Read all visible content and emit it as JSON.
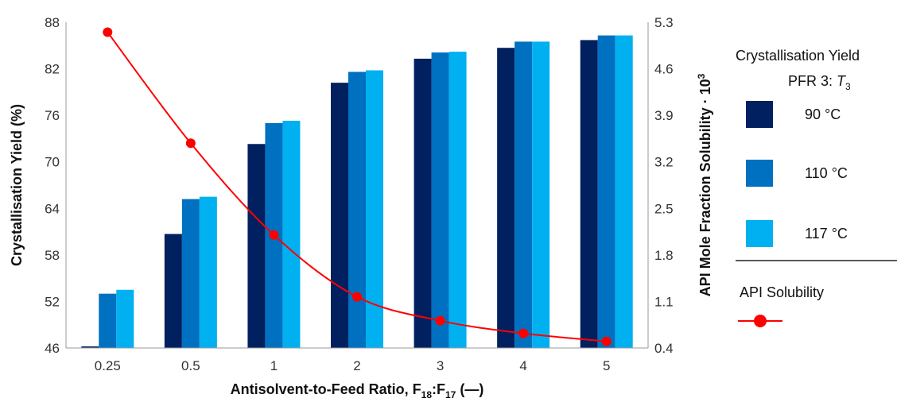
{
  "chart_data": {
    "type": "bar",
    "categories": [
      "0.25",
      "0.5",
      "1",
      "2",
      "3",
      "4",
      "5"
    ],
    "series": [
      {
        "name": "90 °C",
        "color": "#002060",
        "values": [
          46.2,
          60.7,
          72.3,
          80.2,
          83.3,
          84.7,
          85.7
        ]
      },
      {
        "name": "110 °C",
        "color": "#0070C0",
        "values": [
          53.0,
          65.2,
          75.0,
          81.6,
          84.1,
          85.5,
          86.3
        ]
      },
      {
        "name": "117 °C",
        "color": "#00B0F0",
        "values": [
          53.5,
          65.5,
          75.3,
          81.8,
          84.2,
          85.5,
          86.3
        ]
      }
    ],
    "line_series": {
      "name": "API Solubility",
      "color": "#FF0000",
      "axis": "secondary",
      "values": [
        5.15,
        3.48,
        2.1,
        1.17,
        0.81,
        0.62,
        0.5
      ]
    },
    "xlabel_main": "Antisolvent-to-Feed Ratio, F",
    "xlabel_sub1": "18",
    "xlabel_mid": ":F",
    "xlabel_sub2": "17",
    "xlabel_end": " (—)",
    "ylabel": "Crystallisation Yield (%)",
    "y2label_main": "API Mole Fraction Solubility · 10",
    "y2label_sup": "3",
    "ylim": [
      46,
      88
    ],
    "yticks": [
      "46",
      "52",
      "58",
      "64",
      "70",
      "76",
      "82",
      "88"
    ],
    "y2lim": [
      0.4,
      5.3
    ],
    "y2ticks": [
      "0.4",
      "1.1",
      "1.8",
      "2.5",
      "3.2",
      "3.9",
      "4.6",
      "5.3"
    ],
    "grid": false,
    "legend": {
      "position": "right",
      "title": "Crystallisation Yield",
      "subtitle_main": "PFR 3: ",
      "subtitle_var": "T",
      "subtitle_sub": "3",
      "line_label": "API Solubility"
    }
  }
}
